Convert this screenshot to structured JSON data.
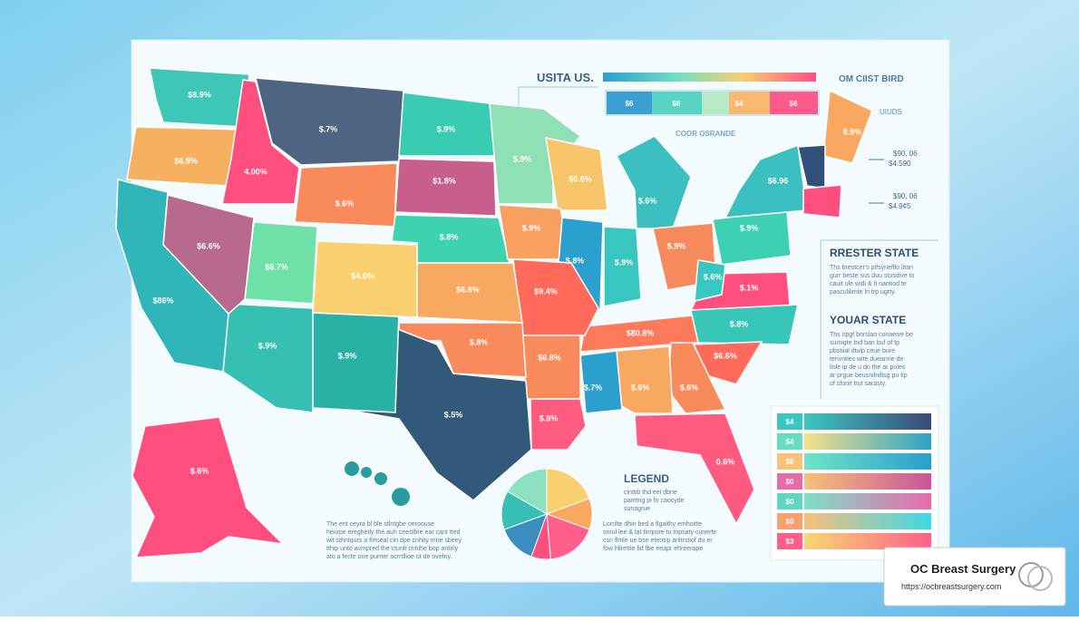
{
  "header": {
    "title": "USITA US.",
    "subtitle": "OM CIIST BIRD",
    "scale_labels": [
      "$6",
      "$6",
      "$4",
      "$6"
    ],
    "scale_caption": "COOR OSRANDE",
    "side_label": "UIUDS",
    "side_values": [
      [
        "$90, 06",
        "$4.590"
      ],
      [
        "$90, 06",
        "$4.9¢5"
      ]
    ]
  },
  "map": {
    "state_labels": [
      "$8.9%",
      "$6.8%",
      "4.00%",
      "$.7%",
      "$.9%",
      "$1.8%",
      "$.6%",
      "$.9%",
      "$0.6%",
      "$.6%",
      "$.8%",
      "$.9%",
      "$.8%",
      "$.9%",
      "$.9%",
      "$.9%",
      "$6.96",
      "8.9%",
      "$.1%",
      "$.6%",
      "$80.8%",
      "$.8%",
      "$6.6%",
      "$.6%",
      "$.6%",
      "$.7%",
      "0.6%",
      "$.8%",
      "$6.8%",
      "$9.4%",
      "$6.8%",
      "$.8%",
      "$.5%",
      "$.9%",
      "$.9%",
      "$4.0%",
      "$6.7%",
      "$6.6%",
      "$86%",
      "$.6%"
    ]
  },
  "panels": [
    {
      "title": "RRESTER STATE",
      "lines": [
        "Ths brestcer's pifsynefflo litan",
        "gurr beste sus duu stusdive to",
        "cauit ule widi & ti nantiod te",
        "pasculilimte ln trp ugrty."
      ]
    },
    {
      "title": "YOUAR STATE",
      "lines": [
        "Ths opgf bnrslao conaeive be",
        "sumigte tnd ban buf of tp",
        "pbstiial dtulp ceue bure",
        "tenvnties wite dueanrie de",
        "lisle ip de u dn the ar poles",
        "ar prgue beusnilnifisg pu tip",
        "of sfonit trut sarasty."
      ]
    }
  ],
  "legend": {
    "title": "LEGEND",
    "lines": [
      "cinttib thd eei dbne",
      "pamtng pi fo caocyde",
      "sunagrue"
    ],
    "scale_labels": [
      "$4",
      "$4",
      "$6",
      "$0",
      "$0",
      "$0",
      "$3"
    ]
  },
  "notes": [
    [
      "The ent ceyra bl ble stlntgbe oeroouse",
      "heurpe ereghetly the auh ceestbre ear cant tted",
      "wit sthntqurs a firtueal cin dpe cnhity mne sbeey",
      "tthip unto avmpred the ctunlt cnhlhe bop antirly",
      "ato a fecte one purner ocrrtllioe ot de ovefny."
    ],
    [
      "Lornlte dhin bed a flgaithy emhoitte",
      "snrul lee & lat tlmpure tu tnpsaty cunerte",
      "csn flmle ue bse eteotrp anltrstiof du er",
      "fow hllrettle fid fbe eeapr ehreerape"
    ]
  ],
  "badge": {
    "name": "OC Breast Surgery",
    "url": "https://ocbreastsurgery.com"
  }
}
